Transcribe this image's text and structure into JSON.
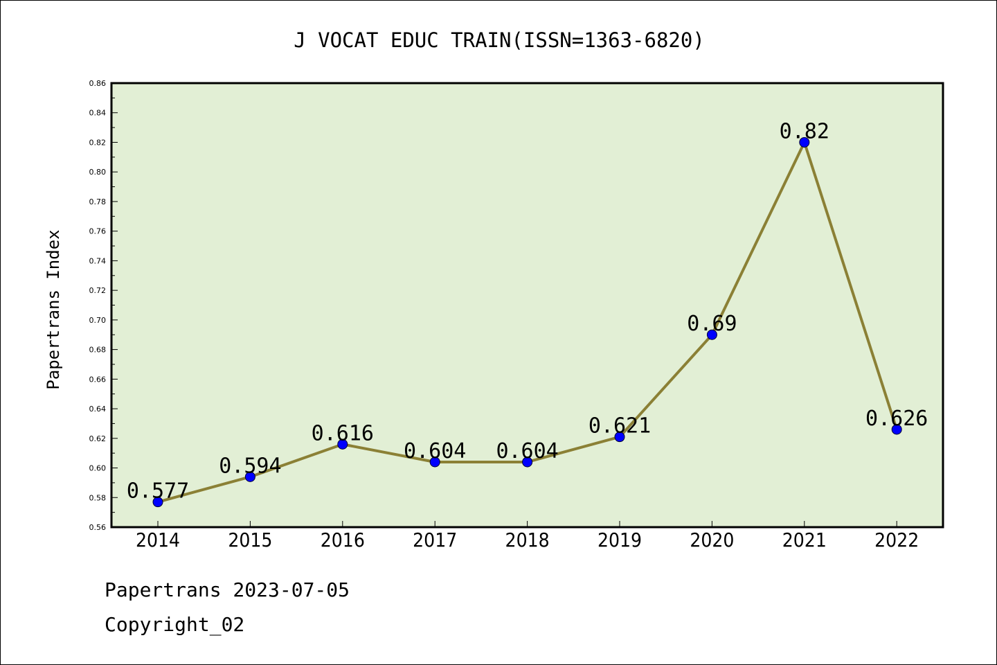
{
  "footer": {
    "line1": "Papertrans 2023-07-05",
    "line2": "Copyright_02"
  },
  "colors": {
    "plot_background": "#e2efd5",
    "line": "#8b8035",
    "marker": "#0000ff"
  },
  "chart_data": {
    "type": "line",
    "title": "J VOCAT EDUC TRAIN(ISSN=1363-6820)",
    "xlabel": "",
    "ylabel": "Papertrans Index",
    "categories": [
      "2014",
      "2015",
      "2016",
      "2017",
      "2018",
      "2019",
      "2020",
      "2021",
      "2022"
    ],
    "series": [
      {
        "values": [
          0.577,
          0.594,
          0.616,
          0.604,
          0.604,
          0.621,
          0.69,
          0.82,
          0.626
        ],
        "labels": [
          "0.577",
          "0.594",
          "0.616",
          "0.604",
          "0.604",
          "0.621",
          "0.69",
          "0.82",
          "0.626"
        ]
      }
    ],
    "ylim": [
      0.56,
      0.86
    ],
    "yticks": [
      "0.56",
      "0.58",
      "0.60",
      "0.62",
      "0.64",
      "0.66",
      "0.68",
      "0.70",
      "0.72",
      "0.74",
      "0.76",
      "0.78",
      "0.80",
      "0.82",
      "0.84",
      "0.86"
    ],
    "grid": false,
    "legend": "none"
  }
}
